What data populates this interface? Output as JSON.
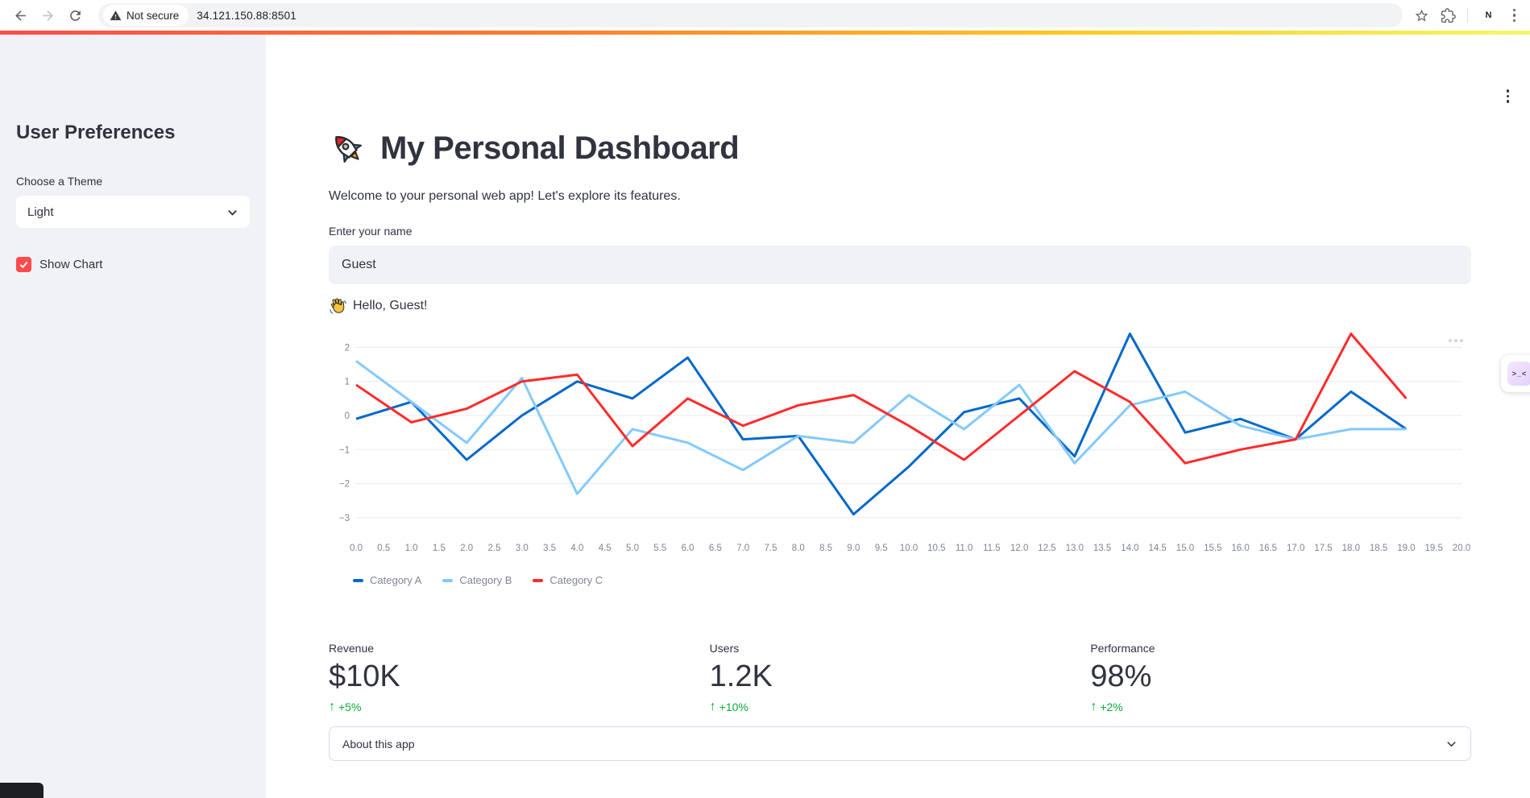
{
  "browser": {
    "security_label": "Not secure",
    "url": "34.121.150.88:8501",
    "profile_initial": "N"
  },
  "sidebar": {
    "title": "User Preferences",
    "theme_label": "Choose a Theme",
    "theme_value": "Light",
    "checkbox_label": "Show Chart",
    "checkbox_checked": true
  },
  "main": {
    "title": "My Personal Dashboard",
    "subtitle": "Welcome to your personal web app! Let's explore its features.",
    "name_label": "Enter your name",
    "name_value": "Guest",
    "greeting": "Hello, Guest!",
    "metrics": [
      {
        "label": "Revenue",
        "value": "$10K",
        "delta": "+5%"
      },
      {
        "label": "Users",
        "value": "1.2K",
        "delta": "+10%"
      },
      {
        "label": "Performance",
        "value": "98%",
        "delta": "+2%"
      }
    ],
    "expander_label": "About this app"
  },
  "colors": {
    "accent_red": "#ff4b4b",
    "delta_green": "#09ab3b",
    "sidebar_bg": "#f0f2f6",
    "gridline": "#e6eaf1",
    "axis_text": "#808495"
  },
  "chart_data": {
    "type": "line",
    "x": [
      0,
      1,
      2,
      3,
      4,
      5,
      6,
      7,
      8,
      9,
      10,
      11,
      12,
      13,
      14,
      15,
      16,
      17,
      18,
      19
    ],
    "series": [
      {
        "name": "Category A",
        "color": "#0068c9",
        "values": [
          -0.1,
          0.4,
          -1.3,
          0.0,
          1.0,
          0.5,
          1.7,
          -0.7,
          -0.6,
          -2.9,
          -1.5,
          0.1,
          0.5,
          -1.2,
          2.4,
          -0.5,
          -0.1,
          -0.7,
          0.7,
          -0.4
        ]
      },
      {
        "name": "Category B",
        "color": "#83c9ff",
        "values": [
          1.6,
          0.4,
          -0.8,
          1.1,
          -2.3,
          -0.4,
          -0.8,
          -1.6,
          -0.6,
          -0.8,
          0.6,
          -0.4,
          0.9,
          -1.4,
          0.3,
          0.7,
          -0.3,
          -0.7,
          -0.4,
          -0.4
        ]
      },
      {
        "name": "Category C",
        "color": "#ff2b2b",
        "values": [
          0.9,
          -0.2,
          0.2,
          1.0,
          1.2,
          -0.9,
          0.5,
          -0.3,
          0.3,
          0.6,
          -0.3,
          -1.3,
          0.0,
          1.3,
          0.4,
          -1.4,
          -1.0,
          -0.7,
          2.4,
          0.5
        ]
      }
    ],
    "yticks": [
      2,
      1,
      0,
      -1,
      -2,
      -3
    ],
    "xticks": [
      0.0,
      0.5,
      1.0,
      1.5,
      2.0,
      2.5,
      3.0,
      3.5,
      4.0,
      4.5,
      5.0,
      5.5,
      6.0,
      6.5,
      7.0,
      7.5,
      8.0,
      8.5,
      9.0,
      9.5,
      10.0,
      10.5,
      11.0,
      11.5,
      12.0,
      12.5,
      13.0,
      13.5,
      14.0,
      14.5,
      15.0,
      15.5,
      16.0,
      16.5,
      17.0,
      17.5,
      18.0,
      18.5,
      19.0,
      19.5,
      20.0
    ],
    "xlim": [
      0,
      20.3
    ],
    "ylim": [
      -3.5,
      2.5
    ],
    "grid": true,
    "legend_position": "bottom",
    "title": "",
    "xlabel": "",
    "ylabel": ""
  }
}
